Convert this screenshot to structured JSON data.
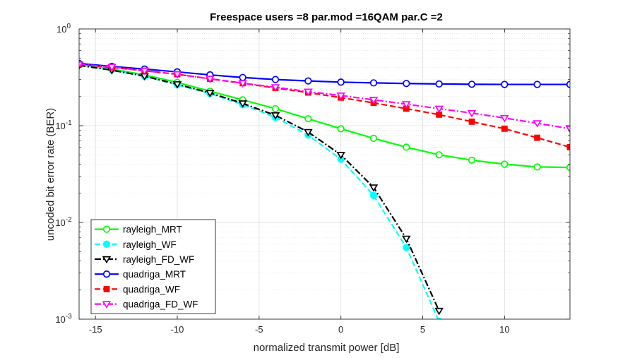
{
  "chart_data": {
    "type": "line",
    "title": "Freespace users =8 par.mod =16QAM par.C =2",
    "xlabel": "normalized transmit power [dB]",
    "ylabel": "uncoded bit error rate (BER)",
    "xlim": [
      -16,
      14
    ],
    "ylim": [
      0.001,
      1
    ],
    "yscale": "log",
    "grid": true,
    "minor_grid": true,
    "legend_position": "bottom-left",
    "x_ticks": [
      -15,
      -10,
      -5,
      0,
      5,
      10
    ],
    "x_tick_labels": [
      "-15",
      "-10",
      "-5",
      "0",
      "5",
      "10"
    ],
    "y_ticks": [
      0.001,
      0.01,
      0.1,
      1
    ],
    "y_tick_labels": [
      {
        "base": "10",
        "exp": "-3"
      },
      {
        "base": "10",
        "exp": "-2"
      },
      {
        "base": "10",
        "exp": "-1"
      },
      {
        "base": "10",
        "exp": "0"
      }
    ],
    "series": [
      {
        "name": "rayleigh_MRT",
        "color": "#00ff00",
        "line": "solid",
        "marker": "circle",
        "marker_fill": "none",
        "x": [
          -16,
          -14,
          -12,
          -10,
          -8,
          -6,
          -4,
          -2,
          0,
          2,
          4,
          6,
          8,
          10,
          12,
          14
        ],
        "y": [
          0.43,
          0.385,
          0.335,
          0.28,
          0.227,
          0.185,
          0.15,
          0.118,
          0.093,
          0.074,
          0.06,
          0.05,
          0.044,
          0.04,
          0.0375,
          0.037
        ]
      },
      {
        "name": "rayleigh_WF",
        "color": "#00ffff",
        "line": "dashed",
        "marker": "circle",
        "marker_fill": "filled",
        "x": [
          -16,
          -14,
          -12,
          -10,
          -8,
          -6,
          -4,
          -2,
          0,
          2,
          4,
          6
        ],
        "y": [
          0.43,
          0.38,
          0.325,
          0.265,
          0.215,
          0.165,
          0.122,
          0.08,
          0.045,
          0.019,
          0.0055,
          0.00095
        ]
      },
      {
        "name": "rayleigh_FD_WF",
        "color": "#000000",
        "line": "dashdot",
        "marker": "triangle-down",
        "marker_fill": "none",
        "x": [
          -16,
          -14,
          -12,
          -10,
          -8,
          -6,
          -4,
          -2,
          0,
          2,
          4,
          6
        ],
        "y": [
          0.42,
          0.375,
          0.325,
          0.268,
          0.218,
          0.17,
          0.128,
          0.086,
          0.05,
          0.023,
          0.0068,
          0.00122
        ]
      },
      {
        "name": "quadriga_MRT",
        "color": "#0000ff",
        "line": "solid",
        "marker": "circle",
        "marker_fill": "none",
        "x": [
          -16,
          -14,
          -12,
          -10,
          -8,
          -6,
          -4,
          -2,
          0,
          2,
          4,
          6,
          8,
          10,
          12,
          14
        ],
        "y": [
          0.44,
          0.41,
          0.385,
          0.36,
          0.335,
          0.315,
          0.3,
          0.29,
          0.282,
          0.277,
          0.273,
          0.27,
          0.268,
          0.267,
          0.267,
          0.267
        ]
      },
      {
        "name": "quadriga_WF",
        "color": "#ff0000",
        "line": "dashed",
        "marker": "square",
        "marker_fill": "filled",
        "x": [
          -16,
          -14,
          -12,
          -10,
          -8,
          -6,
          -4,
          -2,
          0,
          2,
          4,
          6,
          8,
          10,
          12,
          14
        ],
        "y": [
          0.43,
          0.4,
          0.37,
          0.34,
          0.305,
          0.275,
          0.245,
          0.22,
          0.195,
          0.172,
          0.15,
          0.13,
          0.11,
          0.093,
          0.075,
          0.06
        ]
      },
      {
        "name": "quadriga_FD_WF",
        "color": "#ff00ff",
        "line": "dashdot",
        "marker": "triangle-down",
        "marker_fill": "none",
        "x": [
          -16,
          -14,
          -12,
          -10,
          -8,
          -6,
          -4,
          -2,
          0,
          2,
          4,
          6,
          8,
          10,
          12,
          14
        ],
        "y": [
          0.43,
          0.405,
          0.37,
          0.34,
          0.305,
          0.275,
          0.25,
          0.225,
          0.205,
          0.185,
          0.167,
          0.15,
          0.135,
          0.12,
          0.106,
          0.093
        ]
      }
    ]
  }
}
